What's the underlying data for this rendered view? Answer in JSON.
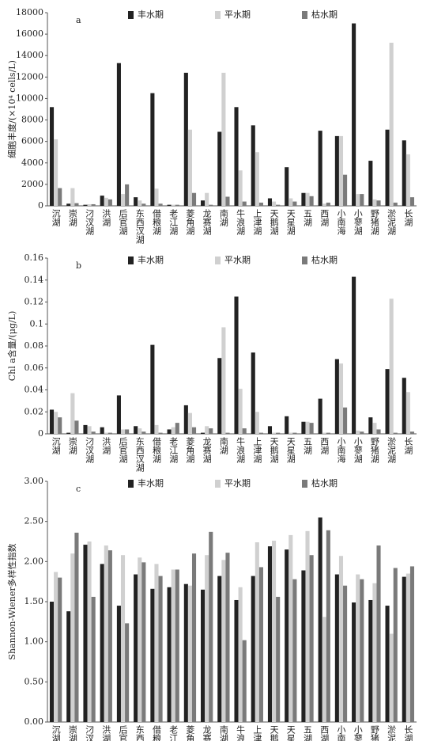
{
  "chart_data": [
    {
      "type": "bar",
      "label": "a",
      "ylabel": "细胞丰度/(×10⁴ cells/L)",
      "categories": [
        "沉湖",
        "崇湖",
        "汈汊湖",
        "洪湖",
        "后官湖",
        "东西汊湖",
        "借粮湖",
        "老江湖",
        "菱角湖",
        "龙赛湖",
        "南湖",
        "牛浪湖",
        "上津湖",
        "天鹅湖",
        "天星湖",
        "五湖",
        "西湖",
        "小南海",
        "小蓼湖",
        "野猪湖",
        "淤泥湖",
        "长湖"
      ],
      "series": [
        {
          "name": "丰水期",
          "color": "#222222",
          "values": [
            9200,
            200,
            100,
            950,
            13300,
            800,
            10500,
            100,
            12400,
            500,
            6900,
            9200,
            7500,
            700,
            3600,
            1200,
            7000,
            6500,
            17000,
            4200,
            7100,
            6100
          ]
        },
        {
          "name": "平水期",
          "color": "#d0d0d0",
          "values": [
            6200,
            1650,
            150,
            750,
            1100,
            500,
            1600,
            100,
            7100,
            1200,
            12400,
            3300,
            5000,
            400,
            700,
            1200,
            200,
            6500,
            1100,
            600,
            15200,
            4800
          ]
        },
        {
          "name": "枯水期",
          "color": "#7a7a7a",
          "values": [
            1650,
            250,
            150,
            600,
            2000,
            200,
            200,
            100,
            1200,
            100,
            850,
            400,
            300,
            100,
            400,
            900,
            300,
            2900,
            1100,
            500,
            300,
            800
          ]
        }
      ],
      "ylim": [
        0,
        18000
      ],
      "yticks": [
        0,
        2000,
        4000,
        6000,
        8000,
        10000,
        12000,
        14000,
        16000,
        18000
      ],
      "legend": "top"
    },
    {
      "type": "bar",
      "label": "b",
      "ylabel": "Chl a含量/(μg/L)",
      "categories": [
        "沉湖",
        "崇湖",
        "汈汊湖",
        "洪湖",
        "后官湖",
        "东西汊湖",
        "借粮湖",
        "老江湖",
        "菱角湖",
        "龙赛湖",
        "南湖",
        "牛浪湖",
        "上津湖",
        "天鹅湖",
        "天星湖",
        "五湖",
        "西湖",
        "小南海",
        "小蓼湖",
        "野猪湖",
        "淤泥湖",
        "长湖"
      ],
      "series": [
        {
          "name": "丰水期",
          "color": "#222222",
          "values": [
            0.022,
            0.001,
            0.008,
            0.006,
            0.035,
            0.007,
            0.081,
            0.004,
            0.026,
            0.001,
            0.069,
            0.125,
            0.074,
            0.007,
            0.016,
            0.011,
            0.032,
            0.068,
            0.143,
            0.015,
            0.059,
            0.051
          ]
        },
        {
          "name": "平水期",
          "color": "#d0d0d0",
          "values": [
            0.02,
            0.037,
            0.007,
            0.001,
            0.004,
            0.005,
            0.008,
            0.006,
            0.019,
            0.007,
            0.097,
            0.041,
            0.02,
            0.001,
            0.001,
            0.011,
            0.001,
            0.064,
            0.003,
            0.01,
            0.123,
            0.038
          ]
        },
        {
          "name": "枯水期",
          "color": "#7a7a7a",
          "values": [
            0.015,
            0.012,
            0.002,
            0.001,
            0.004,
            0.002,
            0.001,
            0.01,
            0.006,
            0.005,
            0.001,
            0.005,
            0.001,
            0.001,
            0.001,
            0.01,
            0.001,
            0.024,
            0.002,
            0.004,
            0.001,
            0.002
          ]
        }
      ],
      "ylim": [
        0,
        0.16
      ],
      "yticks": [
        0,
        0.02,
        0.04,
        0.06,
        0.08,
        0.1,
        0.12,
        0.14,
        0.16
      ],
      "legend": "top"
    },
    {
      "type": "bar",
      "label": "c",
      "ylabel": "Shannon-Wiener多样性指数",
      "categories": [
        "沉湖",
        "崇湖",
        "汈汊湖",
        "洪湖",
        "后官湖",
        "东西汊湖",
        "借粮湖",
        "老江湖",
        "菱角湖",
        "龙赛湖",
        "南湖",
        "牛浪湖",
        "上津湖",
        "天鹅湖",
        "天星湖",
        "五湖",
        "西湖",
        "小南海",
        "小蓼湖",
        "野猪湖",
        "淤泥湖",
        "长湖"
      ],
      "series": [
        {
          "name": "丰水期",
          "color": "#222222",
          "values": [
            1.5,
            1.38,
            2.21,
            1.97,
            1.45,
            1.84,
            1.66,
            1.68,
            1.72,
            1.65,
            1.82,
            1.52,
            1.82,
            2.19,
            2.15,
            1.89,
            2.55,
            1.84,
            1.49,
            1.52,
            1.45,
            1.81
          ]
        },
        {
          "name": "平水期",
          "color": "#d0d0d0",
          "values": [
            1.87,
            2.1,
            2.25,
            2.2,
            2.08,
            2.05,
            1.97,
            1.9,
            1.7,
            2.08,
            2.02,
            1.68,
            2.24,
            2.26,
            2.33,
            2.38,
            1.31,
            2.07,
            1.84,
            1.73,
            1.1,
            1.85
          ]
        },
        {
          "name": "枯水期",
          "color": "#7a7a7a",
          "values": [
            1.8,
            2.36,
            1.56,
            2.14,
            1.23,
            1.99,
            1.82,
            1.9,
            2.1,
            2.37,
            2.11,
            1.02,
            1.93,
            1.56,
            1.78,
            2.08,
            2.39,
            1.7,
            1.78,
            2.2,
            1.92,
            1.94
          ]
        }
      ],
      "ylim": [
        0,
        3
      ],
      "yticks": [
        {
          "value": 0,
          "label": "0.00"
        },
        {
          "value": 0.5,
          "label": "0.50"
        },
        {
          "value": 1,
          "label": "1.00"
        },
        {
          "value": 1.5,
          "label": "1.50"
        },
        {
          "value": 2,
          "label": "2.00"
        },
        {
          "value": 2.5,
          "label": "2.50"
        },
        {
          "value": 3,
          "label": "3.00"
        }
      ],
      "legend": "top"
    }
  ]
}
